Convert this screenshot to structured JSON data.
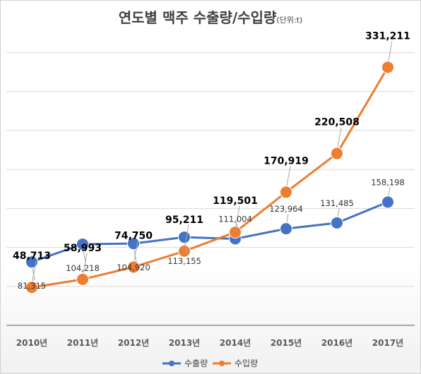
{
  "title": "연도별 맥주 수출량/수입량",
  "unit": "(단위:t)",
  "colors": {
    "export": "#4472c4",
    "import": "#ed7d31"
  },
  "chart_data": {
    "type": "line",
    "title": "연도별 맥주 수출량/수입량",
    "unit": "(단위:t)",
    "categories": [
      "2010년",
      "2011년",
      "2012년",
      "2013년",
      "2014년",
      "2015년",
      "2016년",
      "2017년"
    ],
    "series": [
      {
        "name": "수출량",
        "values": [
          81315,
          104218,
          104920,
          113155,
          111004,
          123964,
          131485,
          158198
        ],
        "labels": [
          "81,315",
          "104,218",
          "104,920",
          "113,155",
          "111,004",
          "123,964",
          "131,485",
          "158,198"
        ],
        "color": "#4472c4",
        "marker": "circle"
      },
      {
        "name": "수입량",
        "values": [
          48713,
          58993,
          74750,
          95211,
          119501,
          170919,
          220508,
          331211
        ],
        "labels": [
          "48,713",
          "58,993",
          "74,750",
          "95,211",
          "119,501",
          "170,919",
          "220,508",
          "331,211"
        ],
        "color": "#ed7d31",
        "marker": "circle"
      }
    ],
    "grid": true,
    "legend": "bottom"
  }
}
